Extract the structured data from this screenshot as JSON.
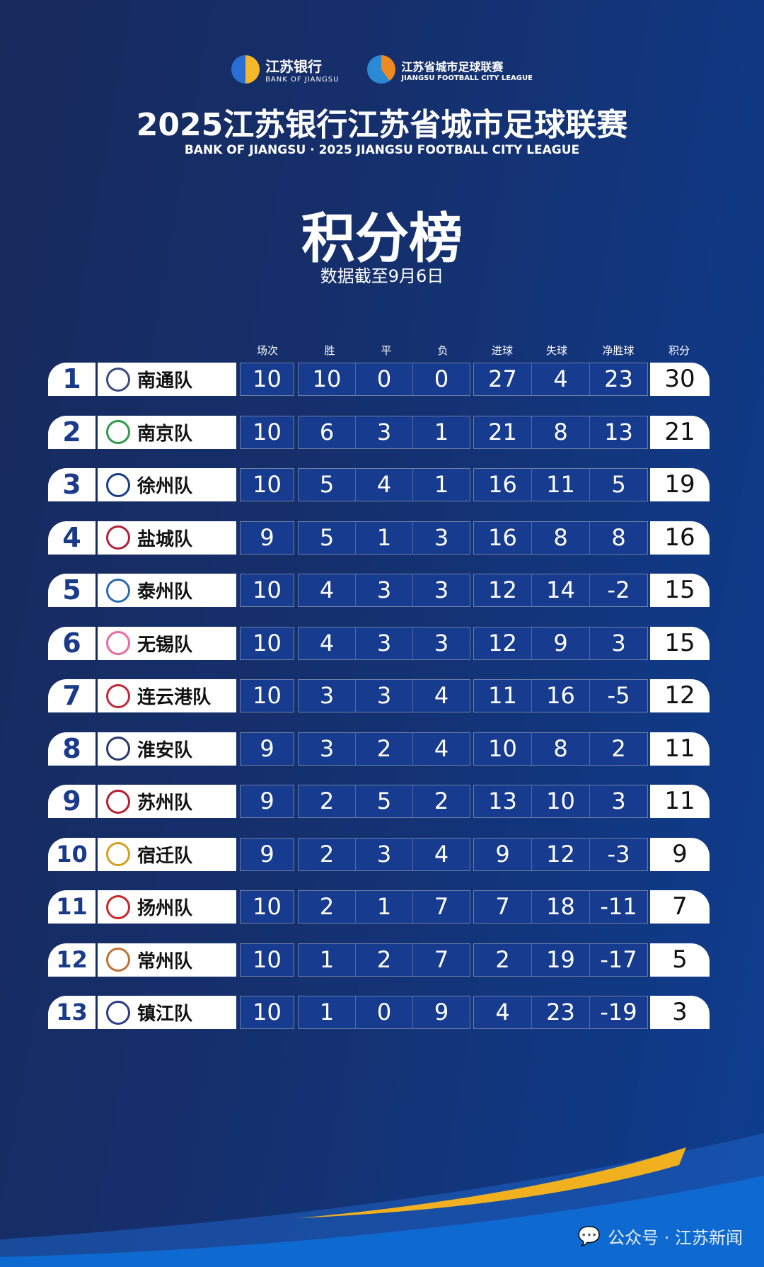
{
  "header": {
    "bank_logo_cn": "江苏银行",
    "bank_logo_en": "BANK OF JIANGSU",
    "league_logo_cn": "江苏省城市足球联赛",
    "league_logo_en": "JIANGSU FOOTBALL CITY LEAGUE",
    "title": "2025江苏银行江苏省城市足球联赛",
    "subtitle": "BANK OF JIANGSU · 2025 JIANGSU FOOTBALL CITY LEAGUE",
    "board": "积分榜",
    "date": "数据截至9月6日"
  },
  "columns": [
    "场次",
    "胜",
    "平",
    "负",
    "进球",
    "失球",
    "净胜球",
    "积分"
  ],
  "rows": [
    {
      "rank": "1",
      "team": "南通队",
      "p": "10",
      "w": "10",
      "d": "0",
      "l": "0",
      "gf": "27",
      "ga": "4",
      "gd": "23",
      "pts": "30"
    },
    {
      "rank": "2",
      "team": "南京队",
      "p": "10",
      "w": "6",
      "d": "3",
      "l": "1",
      "gf": "21",
      "ga": "8",
      "gd": "13",
      "pts": "21"
    },
    {
      "rank": "3",
      "team": "徐州队",
      "p": "10",
      "w": "5",
      "d": "4",
      "l": "1",
      "gf": "16",
      "ga": "11",
      "gd": "5",
      "pts": "19"
    },
    {
      "rank": "4",
      "team": "盐城队",
      "p": "9",
      "w": "5",
      "d": "1",
      "l": "3",
      "gf": "16",
      "ga": "8",
      "gd": "8",
      "pts": "16"
    },
    {
      "rank": "5",
      "team": "泰州队",
      "p": "10",
      "w": "4",
      "d": "3",
      "l": "3",
      "gf": "12",
      "ga": "14",
      "gd": "-2",
      "pts": "15"
    },
    {
      "rank": "6",
      "team": "无锡队",
      "p": "10",
      "w": "4",
      "d": "3",
      "l": "3",
      "gf": "12",
      "ga": "9",
      "gd": "3",
      "pts": "15"
    },
    {
      "rank": "7",
      "team": "连云港队",
      "p": "10",
      "w": "3",
      "d": "3",
      "l": "4",
      "gf": "11",
      "ga": "16",
      "gd": "-5",
      "pts": "12"
    },
    {
      "rank": "8",
      "team": "淮安队",
      "p": "9",
      "w": "3",
      "d": "2",
      "l": "4",
      "gf": "10",
      "ga": "8",
      "gd": "2",
      "pts": "11"
    },
    {
      "rank": "9",
      "team": "苏州队",
      "p": "9",
      "w": "2",
      "d": "5",
      "l": "2",
      "gf": "13",
      "ga": "10",
      "gd": "3",
      "pts": "11"
    },
    {
      "rank": "10",
      "team": "宿迁队",
      "p": "9",
      "w": "2",
      "d": "3",
      "l": "4",
      "gf": "9",
      "ga": "12",
      "gd": "-3",
      "pts": "9"
    },
    {
      "rank": "11",
      "team": "扬州队",
      "p": "10",
      "w": "2",
      "d": "1",
      "l": "7",
      "gf": "7",
      "ga": "18",
      "gd": "-11",
      "pts": "7"
    },
    {
      "rank": "12",
      "team": "常州队",
      "p": "10",
      "w": "1",
      "d": "2",
      "l": "7",
      "gf": "2",
      "ga": "19",
      "gd": "-17",
      "pts": "5"
    },
    {
      "rank": "13",
      "team": "镇江队",
      "p": "10",
      "w": "1",
      "d": "0",
      "l": "9",
      "gf": "4",
      "ga": "23",
      "gd": "-19",
      "pts": "3"
    }
  ],
  "badge_colors": [
    "#3a4a7a",
    "#2e9a4a",
    "#1a3a8a",
    "#b0203a",
    "#2a6ab0",
    "#e86aa0",
    "#c0283a",
    "#2a3a6a",
    "#b02030",
    "#d4a020",
    "#c8282a",
    "#c07030",
    "#2a3a8a"
  ],
  "watermark": "公众号 · 江苏新闻"
}
